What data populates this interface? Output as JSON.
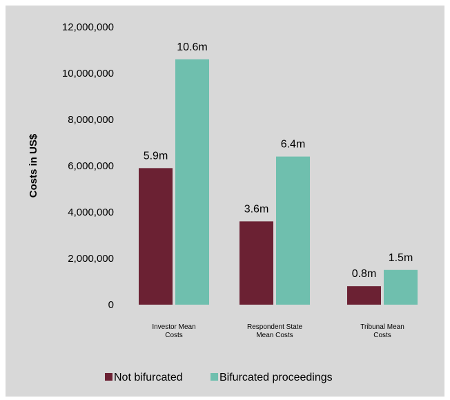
{
  "chart_data": {
    "type": "bar",
    "title": "",
    "xlabel": "",
    "ylabel": "Costs in US$",
    "ylim": [
      0,
      12000000
    ],
    "yticks": [
      0,
      2000000,
      4000000,
      6000000,
      8000000,
      10000000,
      12000000
    ],
    "ytick_labels": [
      "0",
      "2,000,000",
      "4,000,000",
      "6,000,000",
      "8,000,000",
      "10,000,000",
      "12,000,000"
    ],
    "categories": [
      [
        "Investor Mean",
        "Costs"
      ],
      [
        "Respondent State",
        "Mean Costs"
      ],
      [
        "Tribunal Mean",
        "Costs"
      ]
    ],
    "series": [
      {
        "name": "Not bifurcated",
        "color": "#6b2133",
        "values": [
          5900000,
          3600000,
          800000
        ],
        "labels": [
          "5.9m",
          "3.6m",
          "0.8m"
        ]
      },
      {
        "name": "Bifurcated proceedings",
        "color": "#6fbfae",
        "values": [
          10600000,
          6400000,
          1500000
        ],
        "labels": [
          "10.6m",
          "6.4m",
          "1.5m"
        ]
      }
    ],
    "grid": false,
    "legend_position": "bottom"
  }
}
